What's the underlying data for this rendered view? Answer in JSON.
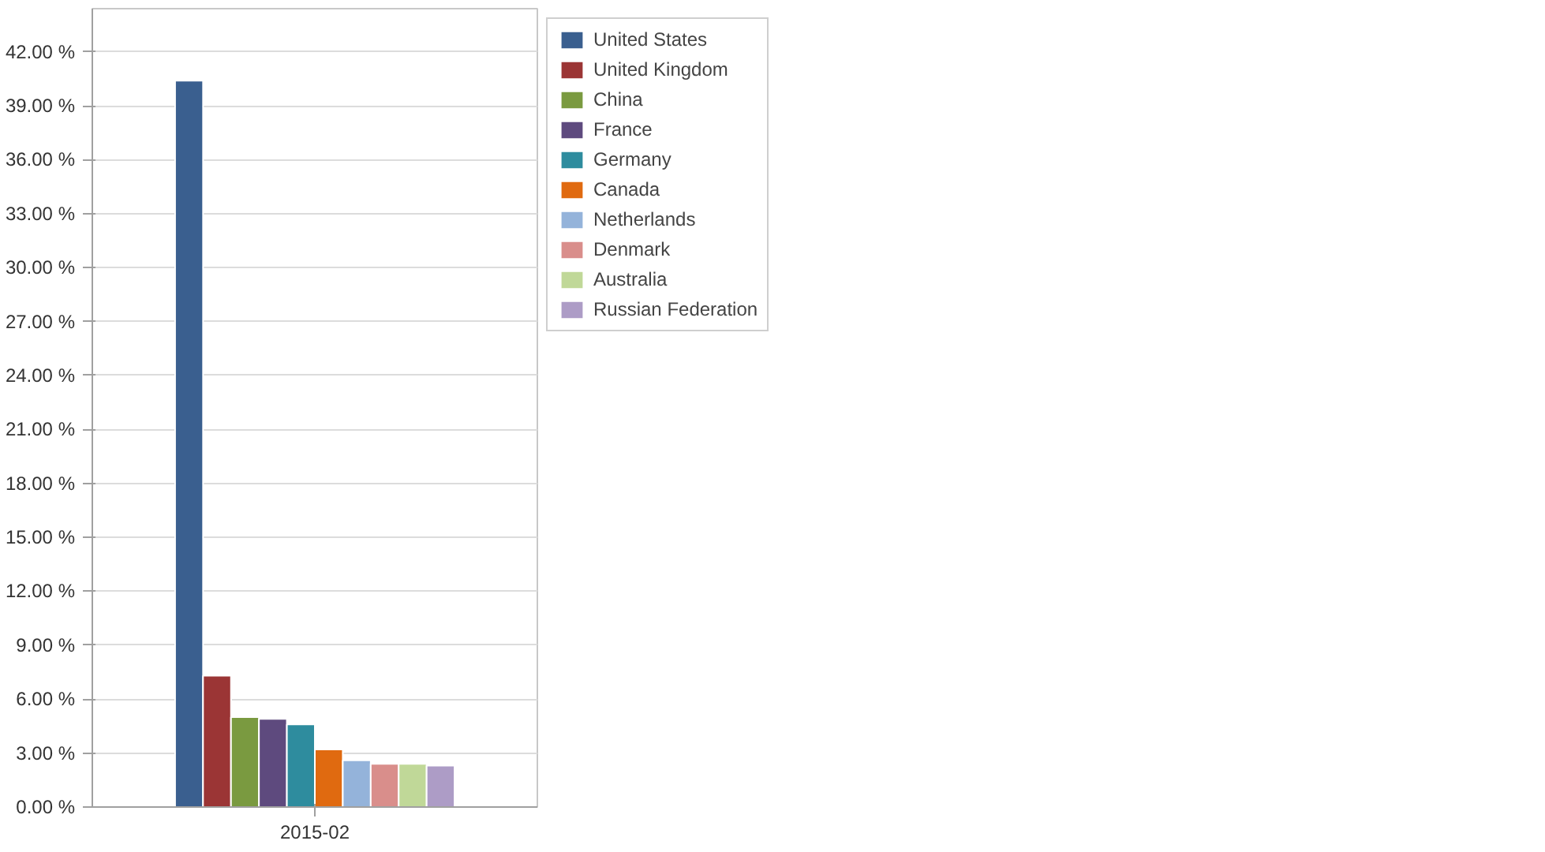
{
  "chart_data": {
    "type": "bar",
    "categories": [
      "2015-02"
    ],
    "series": [
      {
        "name": "United States",
        "color": "#3a5f8f",
        "values": [
          40.4
        ]
      },
      {
        "name": "United Kingdom",
        "color": "#9b3535",
        "values": [
          7.3
        ]
      },
      {
        "name": "China",
        "color": "#7a9a40",
        "values": [
          5.0
        ]
      },
      {
        "name": "France",
        "color": "#5e4a7e",
        "values": [
          4.9
        ]
      },
      {
        "name": "Germany",
        "color": "#2e8c9e",
        "values": [
          4.6
        ]
      },
      {
        "name": "Canada",
        "color": "#e06a10",
        "values": [
          3.2
        ]
      },
      {
        "name": "Netherlands",
        "color": "#94b3da",
        "values": [
          2.6
        ]
      },
      {
        "name": "Denmark",
        "color": "#d98e8b",
        "values": [
          2.4
        ]
      },
      {
        "name": "Australia",
        "color": "#c0d898",
        "values": [
          2.4
        ]
      },
      {
        "name": "Russian Federation",
        "color": "#ad9cc6",
        "values": [
          2.3
        ]
      }
    ],
    "ylim": [
      0,
      44.4
    ],
    "yticks": [
      {
        "value": 0,
        "label": "0.00 %"
      },
      {
        "value": 3,
        "label": "3.00 %"
      },
      {
        "value": 6,
        "label": "6.00 %"
      },
      {
        "value": 9,
        "label": "9.00 %"
      },
      {
        "value": 12,
        "label": "12.00 %"
      },
      {
        "value": 15,
        "label": "15.00 %"
      },
      {
        "value": 18,
        "label": "18.00 %"
      },
      {
        "value": 21,
        "label": "21.00 %"
      },
      {
        "value": 24,
        "label": "24.00 %"
      },
      {
        "value": 27,
        "label": "27.00 %"
      },
      {
        "value": 30,
        "label": "30.00 %"
      },
      {
        "value": 33,
        "label": "33.00 %"
      },
      {
        "value": 36,
        "label": "36.00 %"
      },
      {
        "value": 39,
        "label": "39.00 %"
      },
      {
        "value": 42,
        "label": "42.00 %"
      }
    ],
    "grid": "y",
    "legend": "right"
  }
}
